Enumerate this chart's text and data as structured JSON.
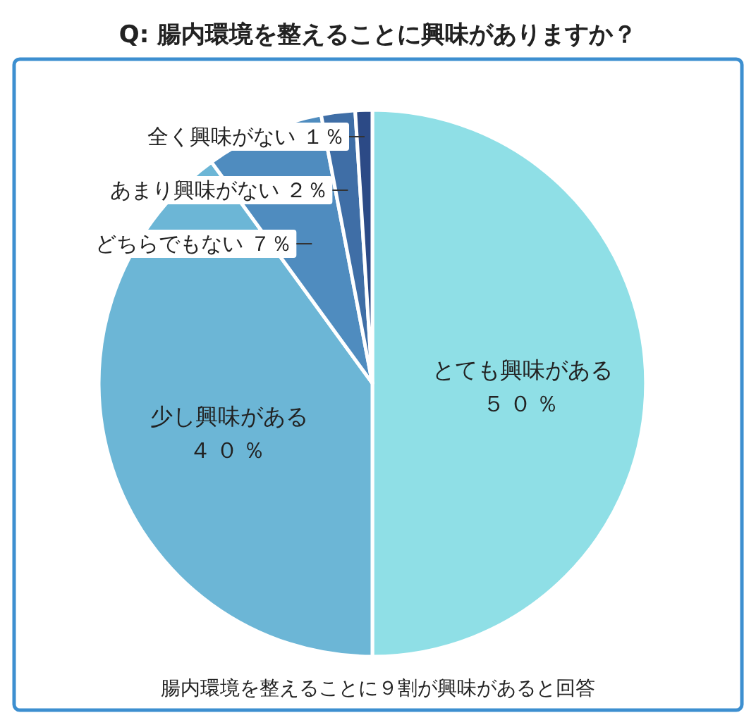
{
  "chart_data": {
    "type": "pie",
    "title": "Q: 腸内環境を整えることに興味がありますか？",
    "categories": [
      "とても興味がある",
      "少し興味がある",
      "どちらでもない",
      "あまり興味がない",
      "全く興味がない"
    ],
    "values": [
      50,
      40,
      7,
      2,
      1
    ],
    "value_labels": [
      "５０％",
      "４０％",
      "７％",
      "２％",
      "１％"
    ],
    "colors": [
      "#8fdfe6",
      "#6cb6d6",
      "#4f8cbf",
      "#3f6ea6",
      "#2c4a86"
    ],
    "annotations": [
      "腸内環境を整えることに９割が興味があると回答"
    ]
  }
}
